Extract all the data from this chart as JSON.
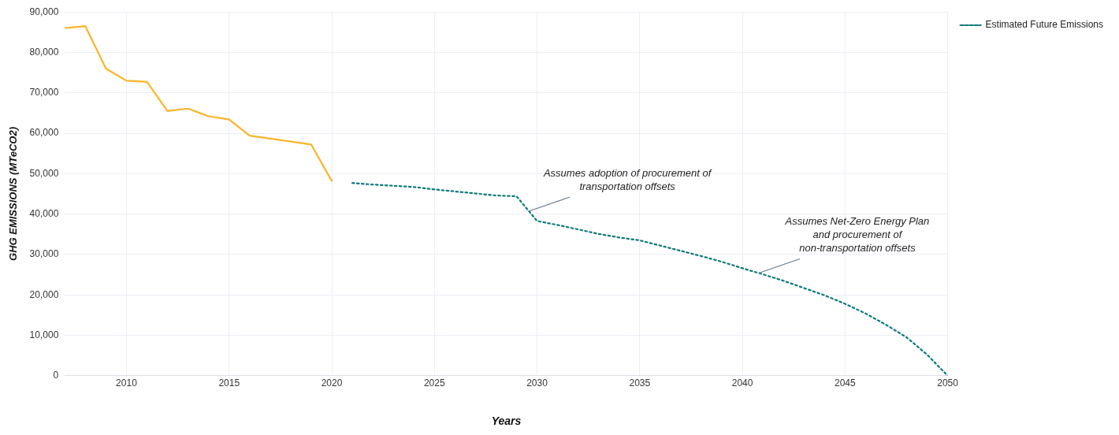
{
  "chart_data": {
    "type": "line",
    "xlabel": "Years",
    "ylabel": "GHG EMISSIONS (MTeCO2)",
    "xlim": [
      2007,
      2050
    ],
    "xticks": [
      2010,
      2015,
      2020,
      2025,
      2030,
      2035,
      2040,
      2045,
      2050
    ],
    "ylim": [
      0,
      90000
    ],
    "yticks": [
      0,
      {
        "value": 10000,
        "label": "10,000"
      },
      {
        "value": 20000,
        "label": "20,000"
      },
      {
        "value": 30000,
        "label": "30,000"
      },
      {
        "value": 40000,
        "label": "40,000"
      },
      {
        "value": 50000,
        "label": "50,000"
      },
      {
        "value": 60000,
        "label": "60,000"
      },
      {
        "value": 70000,
        "label": "70,000"
      },
      {
        "value": 80000,
        "label": "80,000"
      },
      {
        "value": 90000,
        "label": "90,000"
      }
    ],
    "grid": true,
    "legend": "top right",
    "marker": "none",
    "series": [
      {
        "color": "#f9b52a",
        "line_style": "solid",
        "x": [
          2007,
          2008,
          2009,
          2010,
          2011,
          2012,
          2013,
          2014,
          2015,
          2016,
          2019,
          2020
        ],
        "values": [
          86000,
          86500,
          76000,
          73000,
          72700,
          65500,
          66100,
          64200,
          63400,
          59400,
          57200,
          48200
        ]
      },
      {
        "name": "Estimated Future Emissions",
        "color": "#0e7a7a",
        "line_style": "dotted",
        "x": [
          2021,
          2022,
          2023,
          2024,
          2025,
          2026,
          2027,
          2028,
          2029,
          2030,
          2031,
          2032,
          2033,
          2034,
          2035,
          2036,
          2037,
          2038,
          2039,
          2040,
          2041,
          2042,
          2043,
          2044,
          2045,
          2046,
          2047,
          2048,
          2049,
          2050
        ],
        "values": [
          47700,
          47300,
          47000,
          46700,
          46100,
          45600,
          45100,
          44600,
          44400,
          38300,
          37300,
          36200,
          35100,
          34200,
          33500,
          32200,
          30900,
          29600,
          28200,
          26600,
          25100,
          23500,
          21700,
          19900,
          17800,
          15400,
          12600,
          9500,
          5200,
          0
        ]
      }
    ],
    "annotations": [
      {
        "text": "Assumes adoption of procurement of\ntransportation offsets",
        "x": 2029.6,
        "y": 40700
      },
      {
        "text": "Assumes Net-Zero Energy Plan\nand procurement of\nnon-transportation offsets",
        "x": 2040.8,
        "y": 25400
      }
    ]
  }
}
